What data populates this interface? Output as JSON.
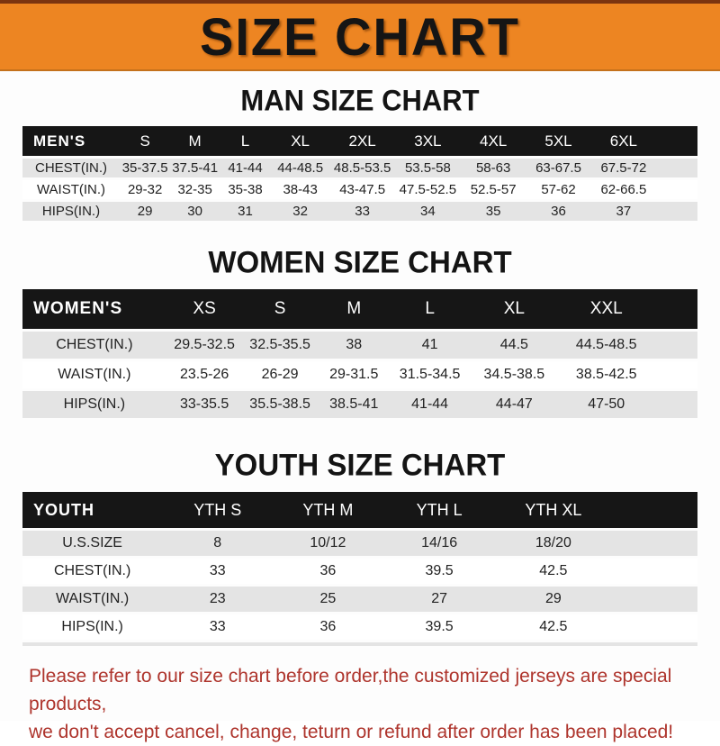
{
  "title": "SIZE CHART",
  "colors": {
    "banner_bg": "#ED8522",
    "banner_text": "#151515",
    "bar_bg": "#161616",
    "bar_text": "#FFFFFF",
    "row_gray": "#E4E4E4",
    "footer_red": "#AE342C"
  },
  "men": {
    "heading": "MAN SIZE CHART",
    "header_label": "MEN'S",
    "sizes": [
      "S",
      "M",
      "L",
      "XL",
      "2XL",
      "3XL",
      "4XL",
      "5XL",
      "6XL"
    ],
    "rows": [
      {
        "label": "CHEST(IN.)",
        "values": [
          "35-37.5",
          "37.5-41",
          "41-44",
          "44-48.5",
          "48.5-53.5",
          "53.5-58",
          "58-63",
          "63-67.5",
          "67.5-72"
        ]
      },
      {
        "label": "WAIST(IN.)",
        "values": [
          "29-32",
          "32-35",
          "35-38",
          "38-43",
          "43-47.5",
          "47.5-52.5",
          "52.5-57",
          "57-62",
          "62-66.5"
        ]
      },
      {
        "label": "HIPS(IN.)",
        "values": [
          "29",
          "30",
          "31",
          "32",
          "33",
          "34",
          "35",
          "36",
          "37"
        ]
      }
    ]
  },
  "women": {
    "heading": "WOMEN SIZE CHART",
    "header_label": "WOMEN'S",
    "sizes": [
      "XS",
      "S",
      "M",
      "L",
      "XL",
      "XXL"
    ],
    "rows": [
      {
        "label": "CHEST(IN.)",
        "values": [
          "29.5-32.5",
          "32.5-35.5",
          "38",
          "41",
          "44.5",
          "44.5-48.5"
        ]
      },
      {
        "label": "WAIST(IN.)",
        "values": [
          "23.5-26",
          "26-29",
          "29-31.5",
          "31.5-34.5",
          "34.5-38.5",
          "38.5-42.5"
        ]
      },
      {
        "label": "HIPS(IN.)",
        "values": [
          "33-35.5",
          "35.5-38.5",
          "38.5-41",
          "41-44",
          "44-47",
          "47-50"
        ]
      }
    ]
  },
  "youth": {
    "heading": "YOUTH SIZE CHART",
    "header_label": "YOUTH",
    "sizes": [
      "YTH S",
      "YTH M",
      "YTH L",
      "YTH XL"
    ],
    "rows": [
      {
        "label": "U.S.SIZE",
        "values": [
          "8",
          "10/12",
          "14/16",
          "18/20"
        ]
      },
      {
        "label": "CHEST(IN.)",
        "values": [
          "33",
          "36",
          "39.5",
          "42.5"
        ]
      },
      {
        "label": "WAIST(IN.)",
        "values": [
          "23",
          "25",
          "27",
          "29"
        ]
      },
      {
        "label": "HIPS(IN.)",
        "values": [
          "33",
          "36",
          "39.5",
          "42.5"
        ]
      }
    ]
  },
  "footer": {
    "line1": "Please refer to our size chart before order,the customized jerseys are special products,",
    "line2": "we don't accept cancel, change, teturn or refund after order has been placed!"
  }
}
